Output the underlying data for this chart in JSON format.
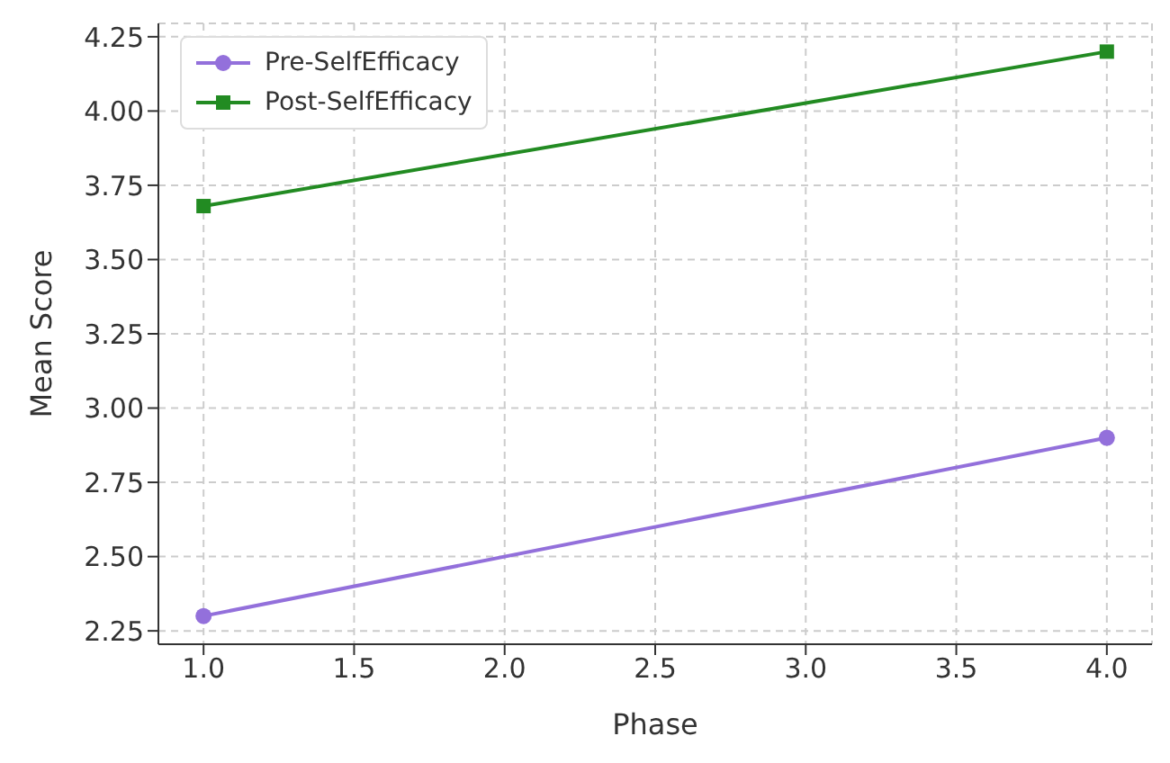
{
  "chart_data": {
    "type": "line",
    "xlabel": "Phase",
    "ylabel": "Mean Score",
    "x": [
      1,
      4
    ],
    "series": [
      {
        "name": "Pre-SelfEfficacy",
        "color": "#9370db",
        "values": [
          2.3,
          2.9
        ],
        "marker": "circle"
      },
      {
        "name": "Post-SelfEfficacy",
        "color": "#228b22",
        "values": [
          3.68,
          4.2
        ],
        "marker": "square"
      }
    ],
    "xlim": [
      0.85,
      4.15
    ],
    "xticks": [
      {
        "value": 1,
        "label": "1.0"
      },
      {
        "value": 1.5,
        "label": "1.5"
      },
      {
        "value": 2,
        "label": "2.0"
      },
      {
        "value": 2.5,
        "label": "2.5"
      },
      {
        "value": 3,
        "label": "3.0"
      },
      {
        "value": 3.5,
        "label": "3.5"
      },
      {
        "value": 4,
        "label": "4.0"
      }
    ],
    "ylim": [
      2.205,
      4.295
    ],
    "yticks": [
      2.25,
      {
        "value": 2.5,
        "label": "2.50"
      },
      2.75,
      {
        "value": 3,
        "label": "3.00"
      },
      3.25,
      {
        "value": 3.5,
        "label": "3.50"
      },
      3.75,
      {
        "value": 4,
        "label": "4.00"
      },
      4.25
    ],
    "grid": true,
    "legend": "top left",
    "line_style": "solid"
  }
}
